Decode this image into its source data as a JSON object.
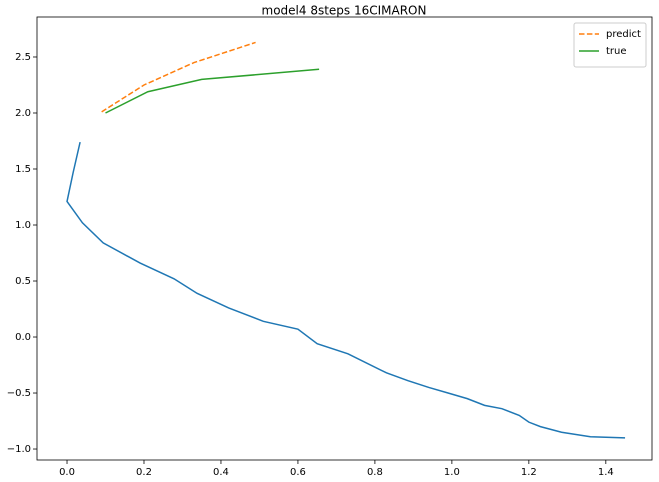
{
  "chart_data": {
    "type": "line",
    "title": "model4 8steps 16CIMARON",
    "series": [
      {
        "color": "#1f77b4",
        "dash": "solid",
        "x": [
          0.034,
          0.016,
          0.0,
          0.04,
          0.094,
          0.19,
          0.278,
          0.338,
          0.42,
          0.51,
          0.6,
          0.65,
          0.73,
          0.83,
          0.886,
          0.94,
          0.99,
          1.04,
          1.085,
          1.13,
          1.175,
          1.2,
          1.23,
          1.285,
          1.36,
          1.45
        ],
        "values": [
          1.74,
          1.47,
          1.21,
          1.02,
          0.84,
          0.66,
          0.52,
          0.39,
          0.26,
          0.14,
          0.07,
          -0.06,
          -0.15,
          -0.32,
          -0.39,
          -0.45,
          -0.5,
          -0.55,
          -0.61,
          -0.64,
          -0.7,
          -0.76,
          -0.8,
          -0.85,
          -0.89,
          -0.9
        ]
      },
      {
        "name": "predict",
        "color": "#ff7f0e",
        "dash": "dashed",
        "x": [
          0.09,
          0.2,
          0.33,
          0.49
        ],
        "values": [
          2.01,
          2.25,
          2.45,
          2.63
        ]
      },
      {
        "name": "true",
        "color": "#2ca02c",
        "dash": "solid",
        "x": [
          0.1,
          0.21,
          0.35,
          0.655
        ],
        "values": [
          2.0,
          2.19,
          2.3,
          2.39
        ]
      }
    ],
    "xlim": [
      -0.078,
      1.52
    ],
    "ylim": [
      -1.098,
      2.857
    ],
    "xticks": [
      {
        "value": 0,
        "label": "0.0"
      },
      0.2,
      0.4,
      0.6,
      0.8,
      {
        "value": 1,
        "label": "1.0"
      },
      1.2,
      1.4
    ],
    "yticks": [
      {
        "value": -1,
        "label": "−1.0"
      },
      {
        "value": -0.5,
        "label": "−0.5"
      },
      {
        "value": 0,
        "label": "0.0"
      },
      0.5,
      {
        "value": 1,
        "label": "1.0"
      },
      1.5,
      {
        "value": 2,
        "label": "2.0"
      },
      2.5
    ],
    "legend": "upper right"
  }
}
